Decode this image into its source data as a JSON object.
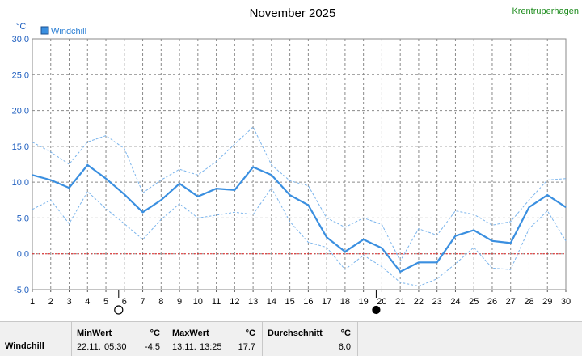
{
  "header": {
    "title": "November 2025",
    "location": "Krentruperhagen",
    "unit": "°C",
    "legend": "Windchill"
  },
  "colors": {
    "series": "#3a8fe0",
    "band": "#7ab4ec",
    "zero_line": "#e02020",
    "grid": "#8a8a8a",
    "location": "#1a8a1a"
  },
  "moon_phases": [
    {
      "day": 6,
      "icon": "full-moon-icon"
    },
    {
      "day": 20,
      "icon": "new-moon-icon"
    }
  ],
  "chart_data": {
    "type": "line",
    "x": [
      1,
      2,
      3,
      4,
      5,
      6,
      7,
      8,
      9,
      10,
      11,
      12,
      13,
      14,
      15,
      16,
      17,
      18,
      19,
      20,
      21,
      22,
      23,
      24,
      25,
      26,
      27,
      28,
      29,
      30
    ],
    "ylim": [
      -5,
      30
    ],
    "yticks": [
      "30.0",
      "25.0",
      "20.0",
      "15.0",
      "10.0",
      "5.0",
      "0.0",
      "-5.0"
    ],
    "ytick_values": [
      30,
      25,
      20,
      15,
      10,
      5,
      0,
      -5
    ],
    "grid": true,
    "legend_position": "top-left",
    "series": [
      {
        "name": "Windchill",
        "role": "mean",
        "values": [
          11.0,
          10.3,
          9.2,
          12.4,
          10.5,
          8.3,
          5.8,
          7.5,
          9.8,
          8.0,
          9.1,
          8.9,
          12.1,
          11.0,
          8.2,
          6.8,
          2.3,
          0.3,
          2.0,
          0.8,
          -2.5,
          -1.2,
          -1.2,
          2.5,
          3.3,
          1.8,
          1.5,
          6.5,
          8.2,
          6.5
        ]
      },
      {
        "role": "max",
        "values": [
          15.6,
          14.2,
          12.5,
          15.6,
          16.5,
          14.7,
          8.5,
          10.3,
          11.8,
          11.0,
          12.9,
          15.3,
          17.7,
          12.4,
          10.2,
          9.5,
          5.0,
          3.7,
          5.0,
          4.1,
          -1.0,
          3.5,
          2.6,
          6.0,
          5.5,
          4.0,
          4.5,
          7.5,
          10.3,
          10.5
        ]
      },
      {
        "role": "min",
        "values": [
          6.2,
          7.5,
          4.2,
          8.7,
          6.3,
          4.2,
          2.0,
          4.8,
          7.0,
          5.0,
          5.4,
          5.8,
          5.5,
          9.2,
          4.5,
          1.6,
          0.9,
          -2.2,
          -0.2,
          -1.8,
          -4.0,
          -4.5,
          -3.5,
          -1.4,
          0.9,
          -2.0,
          -2.2,
          3.5,
          6.0,
          1.8
        ]
      }
    ]
  },
  "stats": {
    "label": "Windchill",
    "min": {
      "header": "MinWert",
      "unit": "°C",
      "date": "22.11.",
      "time": "05:30",
      "value": "-4.5"
    },
    "max": {
      "header": "MaxWert",
      "unit": "°C",
      "date": "13.11.",
      "time": "13:25",
      "value": "17.7"
    },
    "avg": {
      "header": "Durchschnitt",
      "unit": "°C",
      "value": "6.0"
    }
  }
}
